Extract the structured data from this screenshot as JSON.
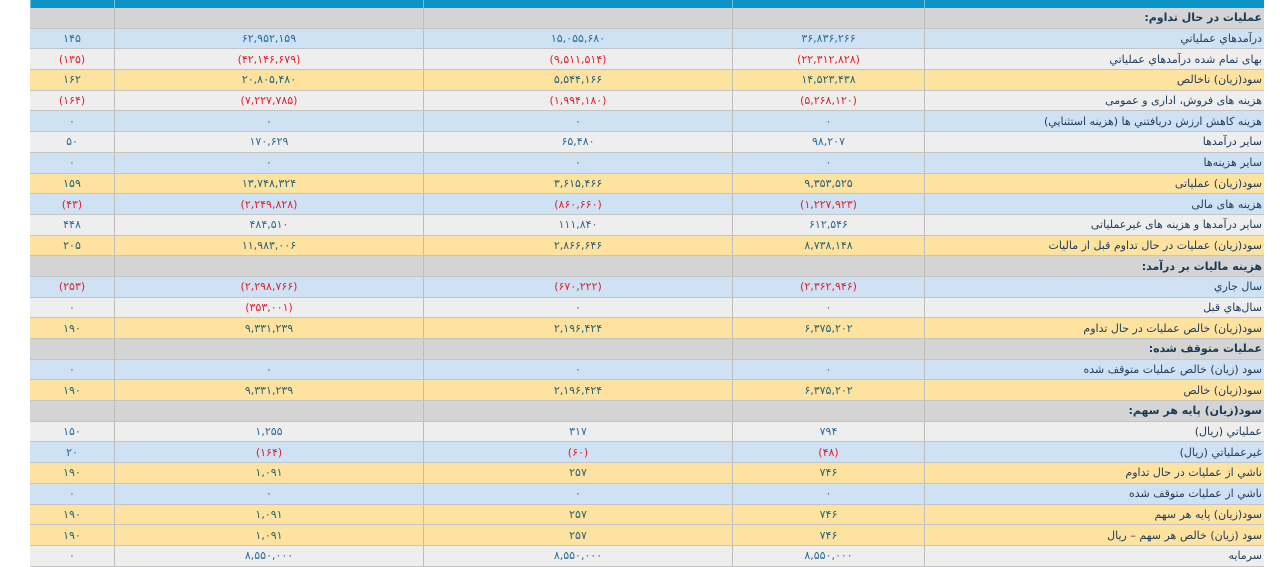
{
  "colors": {
    "header": "#0b95c6",
    "section": "#d4d4d4",
    "blue_row": "#cfe2f3",
    "gray_row": "#eeeeee",
    "highlight_row": "#fde2a0",
    "negative": "#e5202e"
  },
  "rows": [
    {
      "label": "عملیات در حال تداوم:",
      "type": "section",
      "values": [
        "",
        "",
        "",
        ""
      ]
    },
    {
      "label": "درآمدهاي عملياتي",
      "type": "blue",
      "values": [
        "۳۶,۸۳۶,۲۶۶",
        "۱۵,۰۵۵,۶۸۰",
        "۶۲,۹۵۲,۱۵۹",
        "۱۴۵"
      ]
    },
    {
      "label": "بهای تمام شده درآمدهاي عملياتي",
      "type": "gray",
      "values": [
        "(۲۲,۳۱۲,۸۲۸)",
        "(۹,۵۱۱,۵۱۴)",
        "(۴۲,۱۴۶,۶۷۹)",
        "(۱۳۵)"
      ]
    },
    {
      "label": "سود(زیان) ناخالص",
      "type": "yellow",
      "values": [
        "۱۴,۵۲۳,۴۳۸",
        "۵,۵۴۴,۱۶۶",
        "۲۰,۸۰۵,۴۸۰",
        "۱۶۲"
      ]
    },
    {
      "label": "هزینه های فروش، اداری و عمومی",
      "type": "gray",
      "values": [
        "(۵,۲۶۸,۱۲۰)",
        "(۱,۹۹۴,۱۸۰)",
        "(۷,۲۲۷,۷۸۵)",
        "(۱۶۴)"
      ]
    },
    {
      "label": "هزینه کاهش ارزش دريافتني ها (هزينه استثنايي)",
      "type": "blue",
      "values": [
        "۰",
        "۰",
        "۰",
        "۰"
      ]
    },
    {
      "label": "سایر درآمدها",
      "type": "gray",
      "values": [
        "۹۸,۲۰۷",
        "۶۵,۴۸۰",
        "۱۷۰,۶۲۹",
        "۵۰"
      ]
    },
    {
      "label": "سایر هزینه‌ها",
      "type": "blue",
      "values": [
        "۰",
        "۰",
        "۰",
        "۰"
      ]
    },
    {
      "label": "سود(زیان) عملیاتی",
      "type": "yellow",
      "values": [
        "۹,۳۵۳,۵۲۵",
        "۳,۶۱۵,۴۶۶",
        "۱۳,۷۴۸,۳۲۴",
        "۱۵۹"
      ]
    },
    {
      "label": "هزینه های مالی",
      "type": "blue",
      "values": [
        "(۱,۲۲۷,۹۲۳)",
        "(۸۶۰,۶۶۰)",
        "(۲,۲۴۹,۸۲۸)",
        "(۴۳)"
      ]
    },
    {
      "label": "سایر درآمدها و هزینه های غیرعملیاتی",
      "type": "gray",
      "values": [
        "۶۱۲,۵۴۶",
        "۱۱۱,۸۴۰",
        "۴۸۴,۵۱۰",
        "۴۴۸"
      ]
    },
    {
      "label": "سود(زیان) عملیات در حال تداوم قبل از مالیات",
      "type": "yellow",
      "values": [
        "۸,۷۳۸,۱۴۸",
        "۲,۸۶۶,۶۴۶",
        "۱۱,۹۸۳,۰۰۶",
        "۲۰۵"
      ]
    },
    {
      "label": "هزینه مالیات بر درآمد:",
      "type": "section",
      "values": [
        "",
        "",
        "",
        ""
      ]
    },
    {
      "label": "سال جاري",
      "type": "blue",
      "values": [
        "(۲,۳۶۲,۹۴۶)",
        "(۶۷۰,۲۲۲)",
        "(۲,۲۹۸,۷۶۶)",
        "(۲۵۳)"
      ]
    },
    {
      "label": "سال‌هاي قبل",
      "type": "gray",
      "values": [
        "۰",
        "۰",
        "(۳۵۳,۰۰۱)",
        "۰"
      ]
    },
    {
      "label": "سود(زیان) خالص عملیات در حال تداوم",
      "type": "yellow",
      "values": [
        "۶,۳۷۵,۲۰۲",
        "۲,۱۹۶,۴۲۴",
        "۹,۳۳۱,۲۳۹",
        "۱۹۰"
      ]
    },
    {
      "label": "عملیات متوقف شده:",
      "type": "section",
      "values": [
        "",
        "",
        "",
        ""
      ]
    },
    {
      "label": "سود (زیان) خالص عملیات متوقف شده",
      "type": "blue",
      "values": [
        "۰",
        "۰",
        "۰",
        "۰"
      ]
    },
    {
      "label": "سود(زیان) خالص",
      "type": "yellow",
      "values": [
        "۶,۳۷۵,۲۰۲",
        "۲,۱۹۶,۴۲۴",
        "۹,۳۳۱,۲۳۹",
        "۱۹۰"
      ]
    },
    {
      "label": "سود(زيان) پايه هر سهم:",
      "type": "section",
      "values": [
        "",
        "",
        "",
        ""
      ]
    },
    {
      "label": "عملياتي (ريال)",
      "type": "gray",
      "values": [
        "۷۹۴",
        "۳۱۷",
        "۱,۲۵۵",
        "۱۵۰"
      ]
    },
    {
      "label": "غيرعملياتي (ريال)",
      "type": "blue",
      "values": [
        "(۴۸)",
        "(۶۰)",
        "(۱۶۴)",
        "۲۰"
      ]
    },
    {
      "label": "ناشي از عمليات در حال تداوم",
      "type": "yellow",
      "values": [
        "۷۴۶",
        "۲۵۷",
        "۱,۰۹۱",
        "۱۹۰"
      ]
    },
    {
      "label": "ناشي از عمليات متوقف شده",
      "type": "blue",
      "values": [
        "۰",
        "۰",
        "۰",
        "۰"
      ]
    },
    {
      "label": "سود(زيان) پايه هر سهم",
      "type": "yellow",
      "values": [
        "۷۴۶",
        "۲۵۷",
        "۱,۰۹۱",
        "۱۹۰"
      ]
    },
    {
      "label": "سود (زيان) خالص هر سهم – ريال",
      "type": "yellow",
      "values": [
        "۷۴۶",
        "۲۵۷",
        "۱,۰۹۱",
        "۱۹۰"
      ]
    },
    {
      "label": "سرمايه",
      "type": "gray",
      "values": [
        "۸,۵۵۰,۰۰۰",
        "۸,۵۵۰,۰۰۰",
        "۸,۵۵۰,۰۰۰",
        "۰"
      ]
    }
  ]
}
